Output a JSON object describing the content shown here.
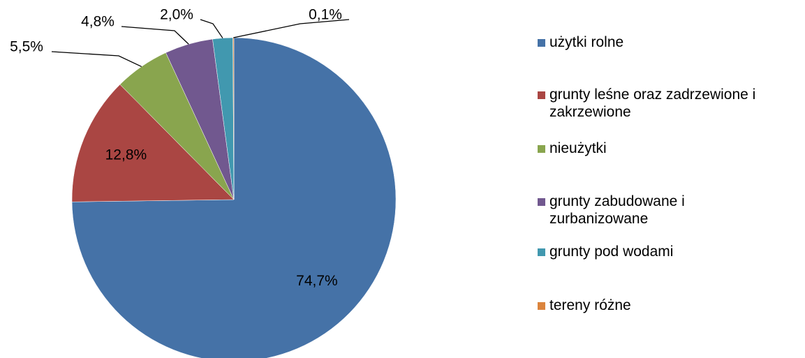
{
  "chart_data": {
    "type": "pie",
    "categories": [
      "użytki rolne",
      "grunty leśne oraz zadrzewione i zakrzewione",
      "nieużytki",
      "grunty zabudowane i zurbanizowane",
      "grunty pod wodami",
      "tereny różne"
    ],
    "values": [
      74.7,
      12.8,
      5.5,
      4.8,
      2.0,
      0.1
    ],
    "value_labels": [
      "74,7%",
      "12,8%",
      "5,5%",
      "4,8%",
      "2,0%",
      "0,1%"
    ],
    "colors": [
      "#4572a7",
      "#aa4643",
      "#89a54e",
      "#71588f",
      "#4198af",
      "#db843d"
    ],
    "legend": "right"
  }
}
